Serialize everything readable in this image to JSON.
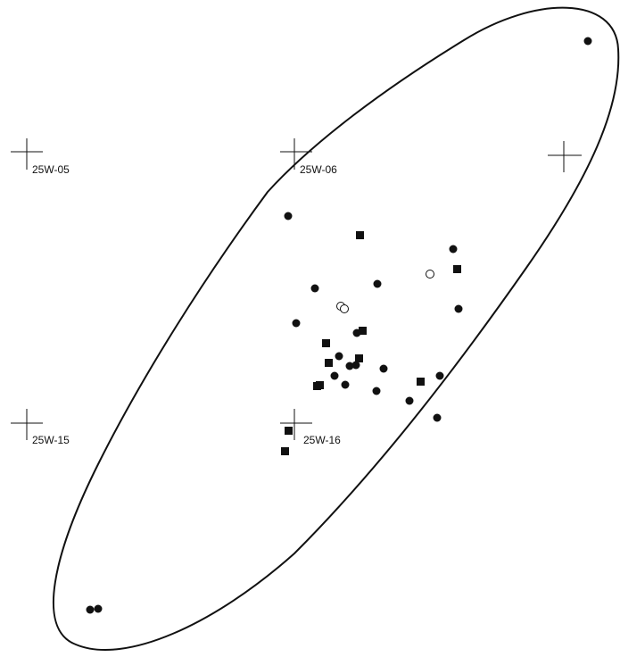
{
  "grid_markers": [
    {
      "id": "g1",
      "label": "25W-05"
    },
    {
      "id": "g2",
      "label": "25W-06"
    },
    {
      "id": "g3",
      "label": ""
    },
    {
      "id": "g4",
      "label": "25W-15"
    },
    {
      "id": "g5",
      "label": "25W-16"
    }
  ]
}
